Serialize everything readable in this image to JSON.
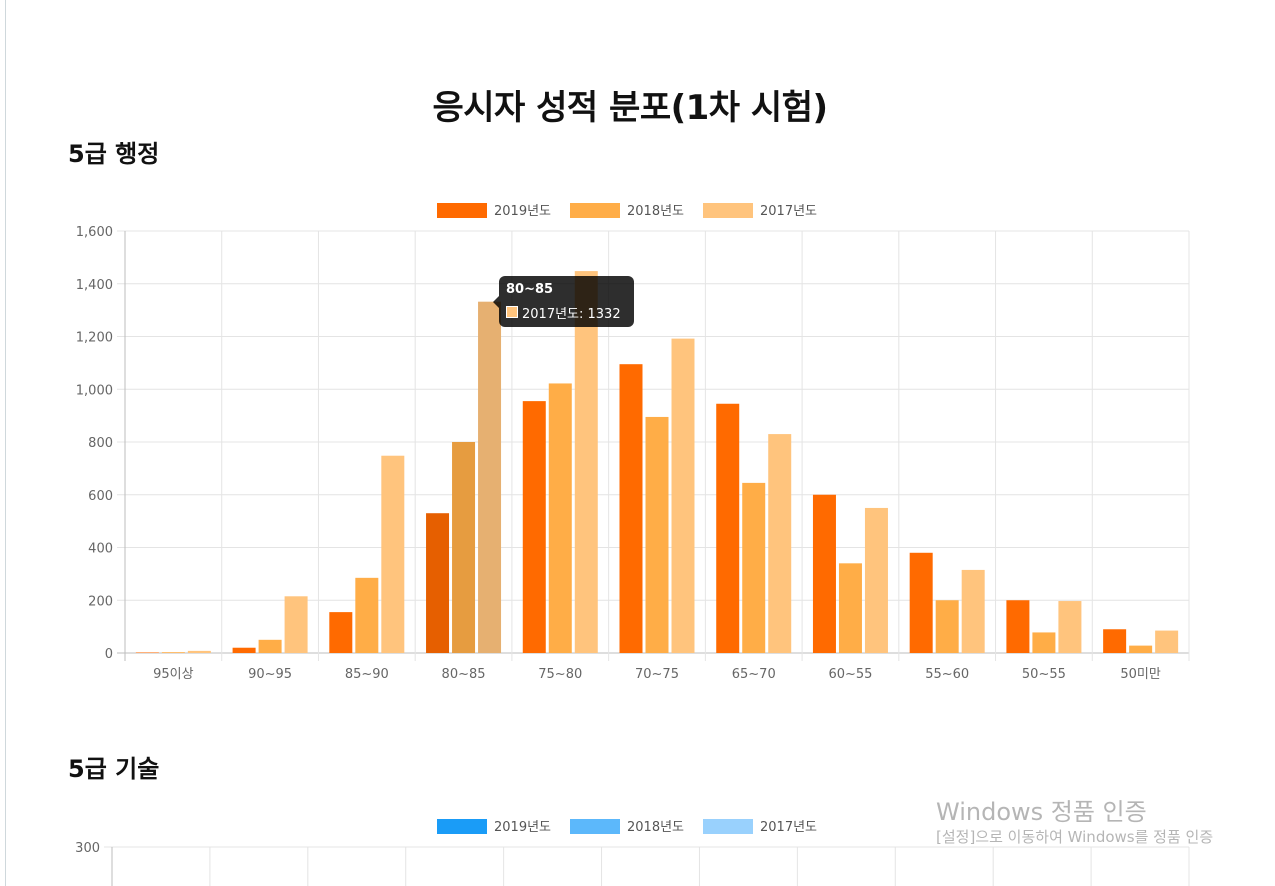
{
  "page": {
    "title": "응시자 성적 분포(1차 시험)"
  },
  "chart_data": [
    {
      "type": "bar",
      "title": "5급 행정",
      "categories": [
        "95이상",
        "90~95",
        "85~90",
        "80~85",
        "75~80",
        "70~75",
        "65~70",
        "60~55",
        "55~60",
        "50~55",
        "50미만"
      ],
      "series": [
        {
          "name": "2019년도",
          "color": "#ff6a00",
          "values": [
            2,
            20,
            155,
            530,
            955,
            1095,
            945,
            600,
            380,
            200,
            90
          ]
        },
        {
          "name": "2018년도",
          "color": "#ffad47",
          "values": [
            3,
            50,
            285,
            800,
            1022,
            895,
            645,
            340,
            200,
            78,
            28
          ]
        },
        {
          "name": "2017년도",
          "color": "#ffc47d",
          "values": [
            8,
            215,
            748,
            1332,
            1448,
            1192,
            830,
            550,
            315,
            197,
            85
          ]
        }
      ],
      "ylim": [
        0,
        1600
      ],
      "yticks": [
        0,
        200,
        400,
        600,
        800,
        1000,
        1200,
        1400,
        1600
      ],
      "ytick_labels": [
        "0",
        "200",
        "400",
        "600",
        "800",
        "1,000",
        "1,200",
        "1,400",
        "1,600"
      ],
      "legend_position": "top-center",
      "grid": true,
      "hover_category_index": 3,
      "tooltip": {
        "title": "80~85",
        "body": "2017년도: 1332",
        "color": "#ffc47d"
      }
    },
    {
      "type": "bar",
      "title": "5급 기술",
      "categories": [],
      "series": [
        {
          "name": "2019년도",
          "color": "#1a9cf7",
          "values": []
        },
        {
          "name": "2018년도",
          "color": "#5cb8fb",
          "values": []
        },
        {
          "name": "2017년도",
          "color": "#99d1fd",
          "values": []
        }
      ],
      "ylim": [
        0,
        300
      ],
      "yticks": [
        300
      ],
      "ytick_labels": [
        "300"
      ],
      "legend_position": "top-center",
      "grid": true
    }
  ],
  "watermark": {
    "line1": "Windows 정품 인증",
    "line2": "[설정]으로 이동하여 Windows를 정품 인증"
  }
}
